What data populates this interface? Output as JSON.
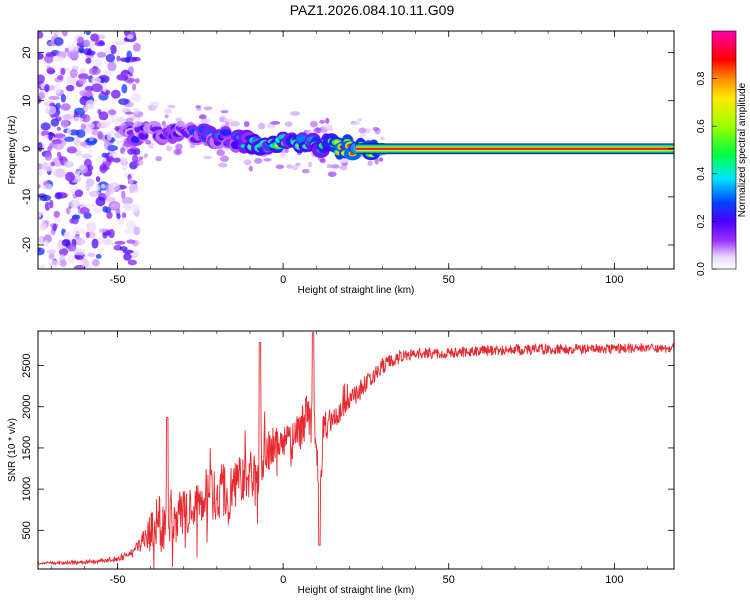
{
  "chart_data": [
    {
      "type": "heatmap",
      "title": "PAZ1.2026.084.10.11.G09",
      "xlabel": "Height of straight line (km)",
      "ylabel": "Frequency (Hz)",
      "xlim": [
        -74,
        118
      ],
      "ylim": [
        -25,
        24.5
      ],
      "x_ticks": [
        -50,
        0,
        50,
        100
      ],
      "y_ticks": [
        -20,
        -10,
        0,
        10,
        20
      ],
      "colorbar": {
        "label": "Normalized spectral amplitude",
        "range": [
          0,
          1
        ],
        "ticks": [
          "0.0",
          "0.2",
          "0.4",
          "0.6",
          "0.8"
        ]
      },
      "description_points": [
        {
          "x": -70,
          "noise_band_hz": [
            -25,
            24
          ]
        },
        {
          "x": -45,
          "center_hz": 3.0,
          "amplitude": 0.3
        },
        {
          "x": -30,
          "center_hz": 3.5,
          "amplitude": 0.35
        },
        {
          "x": -15,
          "center_hz": 2.0,
          "amplitude": 0.45
        },
        {
          "x": -5,
          "center_hz": 1.0,
          "amplitude": 0.7
        },
        {
          "x": 5,
          "center_hz": 1.5,
          "amplitude": 0.55
        },
        {
          "x": 15,
          "center_hz": 0.5,
          "amplitude": 0.8
        },
        {
          "x": 25,
          "center_hz": 0.0,
          "amplitude": 0.95
        },
        {
          "x": 118,
          "center_hz": 0.0,
          "amplitude": 0.95
        }
      ]
    },
    {
      "type": "line",
      "xlabel": "Height of straight line (km)",
      "ylabel": "SNR (10 * v/v)",
      "xlim": [
        -74,
        118
      ],
      "ylim": [
        30,
        2920
      ],
      "x_ticks": [
        -50,
        0,
        50,
        100
      ],
      "y_ticks": [
        500,
        1000,
        1500,
        2000,
        2500
      ],
      "series": [
        {
          "name": "SNR",
          "color": "#e8292f",
          "x": [
            -74,
            -60,
            -50,
            -45,
            -42,
            -38,
            -35,
            -30,
            -25,
            -20,
            -15,
            -10,
            -8,
            -6,
            -2,
            2,
            5,
            8,
            10,
            11,
            12,
            15,
            20,
            25,
            30,
            35,
            40,
            50,
            60,
            80,
            100,
            118
          ],
          "y": [
            100,
            110,
            150,
            230,
            400,
            550,
            650,
            700,
            850,
            950,
            1050,
            1150,
            1200,
            1400,
            1550,
            1650,
            1750,
            1900,
            1600,
            600,
            1750,
            1850,
            2050,
            2300,
            2500,
            2600,
            2650,
            2650,
            2680,
            2700,
            2700,
            2720
          ],
          "noise": [
            20,
            30,
            40,
            80,
            150,
            450,
            450,
            350,
            400,
            400,
            400,
            350,
            400,
            350,
            300,
            250,
            350,
            400,
            300,
            250,
            300,
            200,
            150,
            150,
            120,
            100,
            90,
            80,
            80,
            80,
            80,
            80
          ]
        }
      ],
      "annotations": [
        {
          "x": -35,
          "y": 1870,
          "text": "spike"
        },
        {
          "x": -7,
          "y": 2780,
          "text": "spike"
        },
        {
          "x": 9,
          "y": 2900,
          "text": "spike"
        },
        {
          "x": 11,
          "y": 320,
          "text": "dip"
        }
      ]
    }
  ]
}
